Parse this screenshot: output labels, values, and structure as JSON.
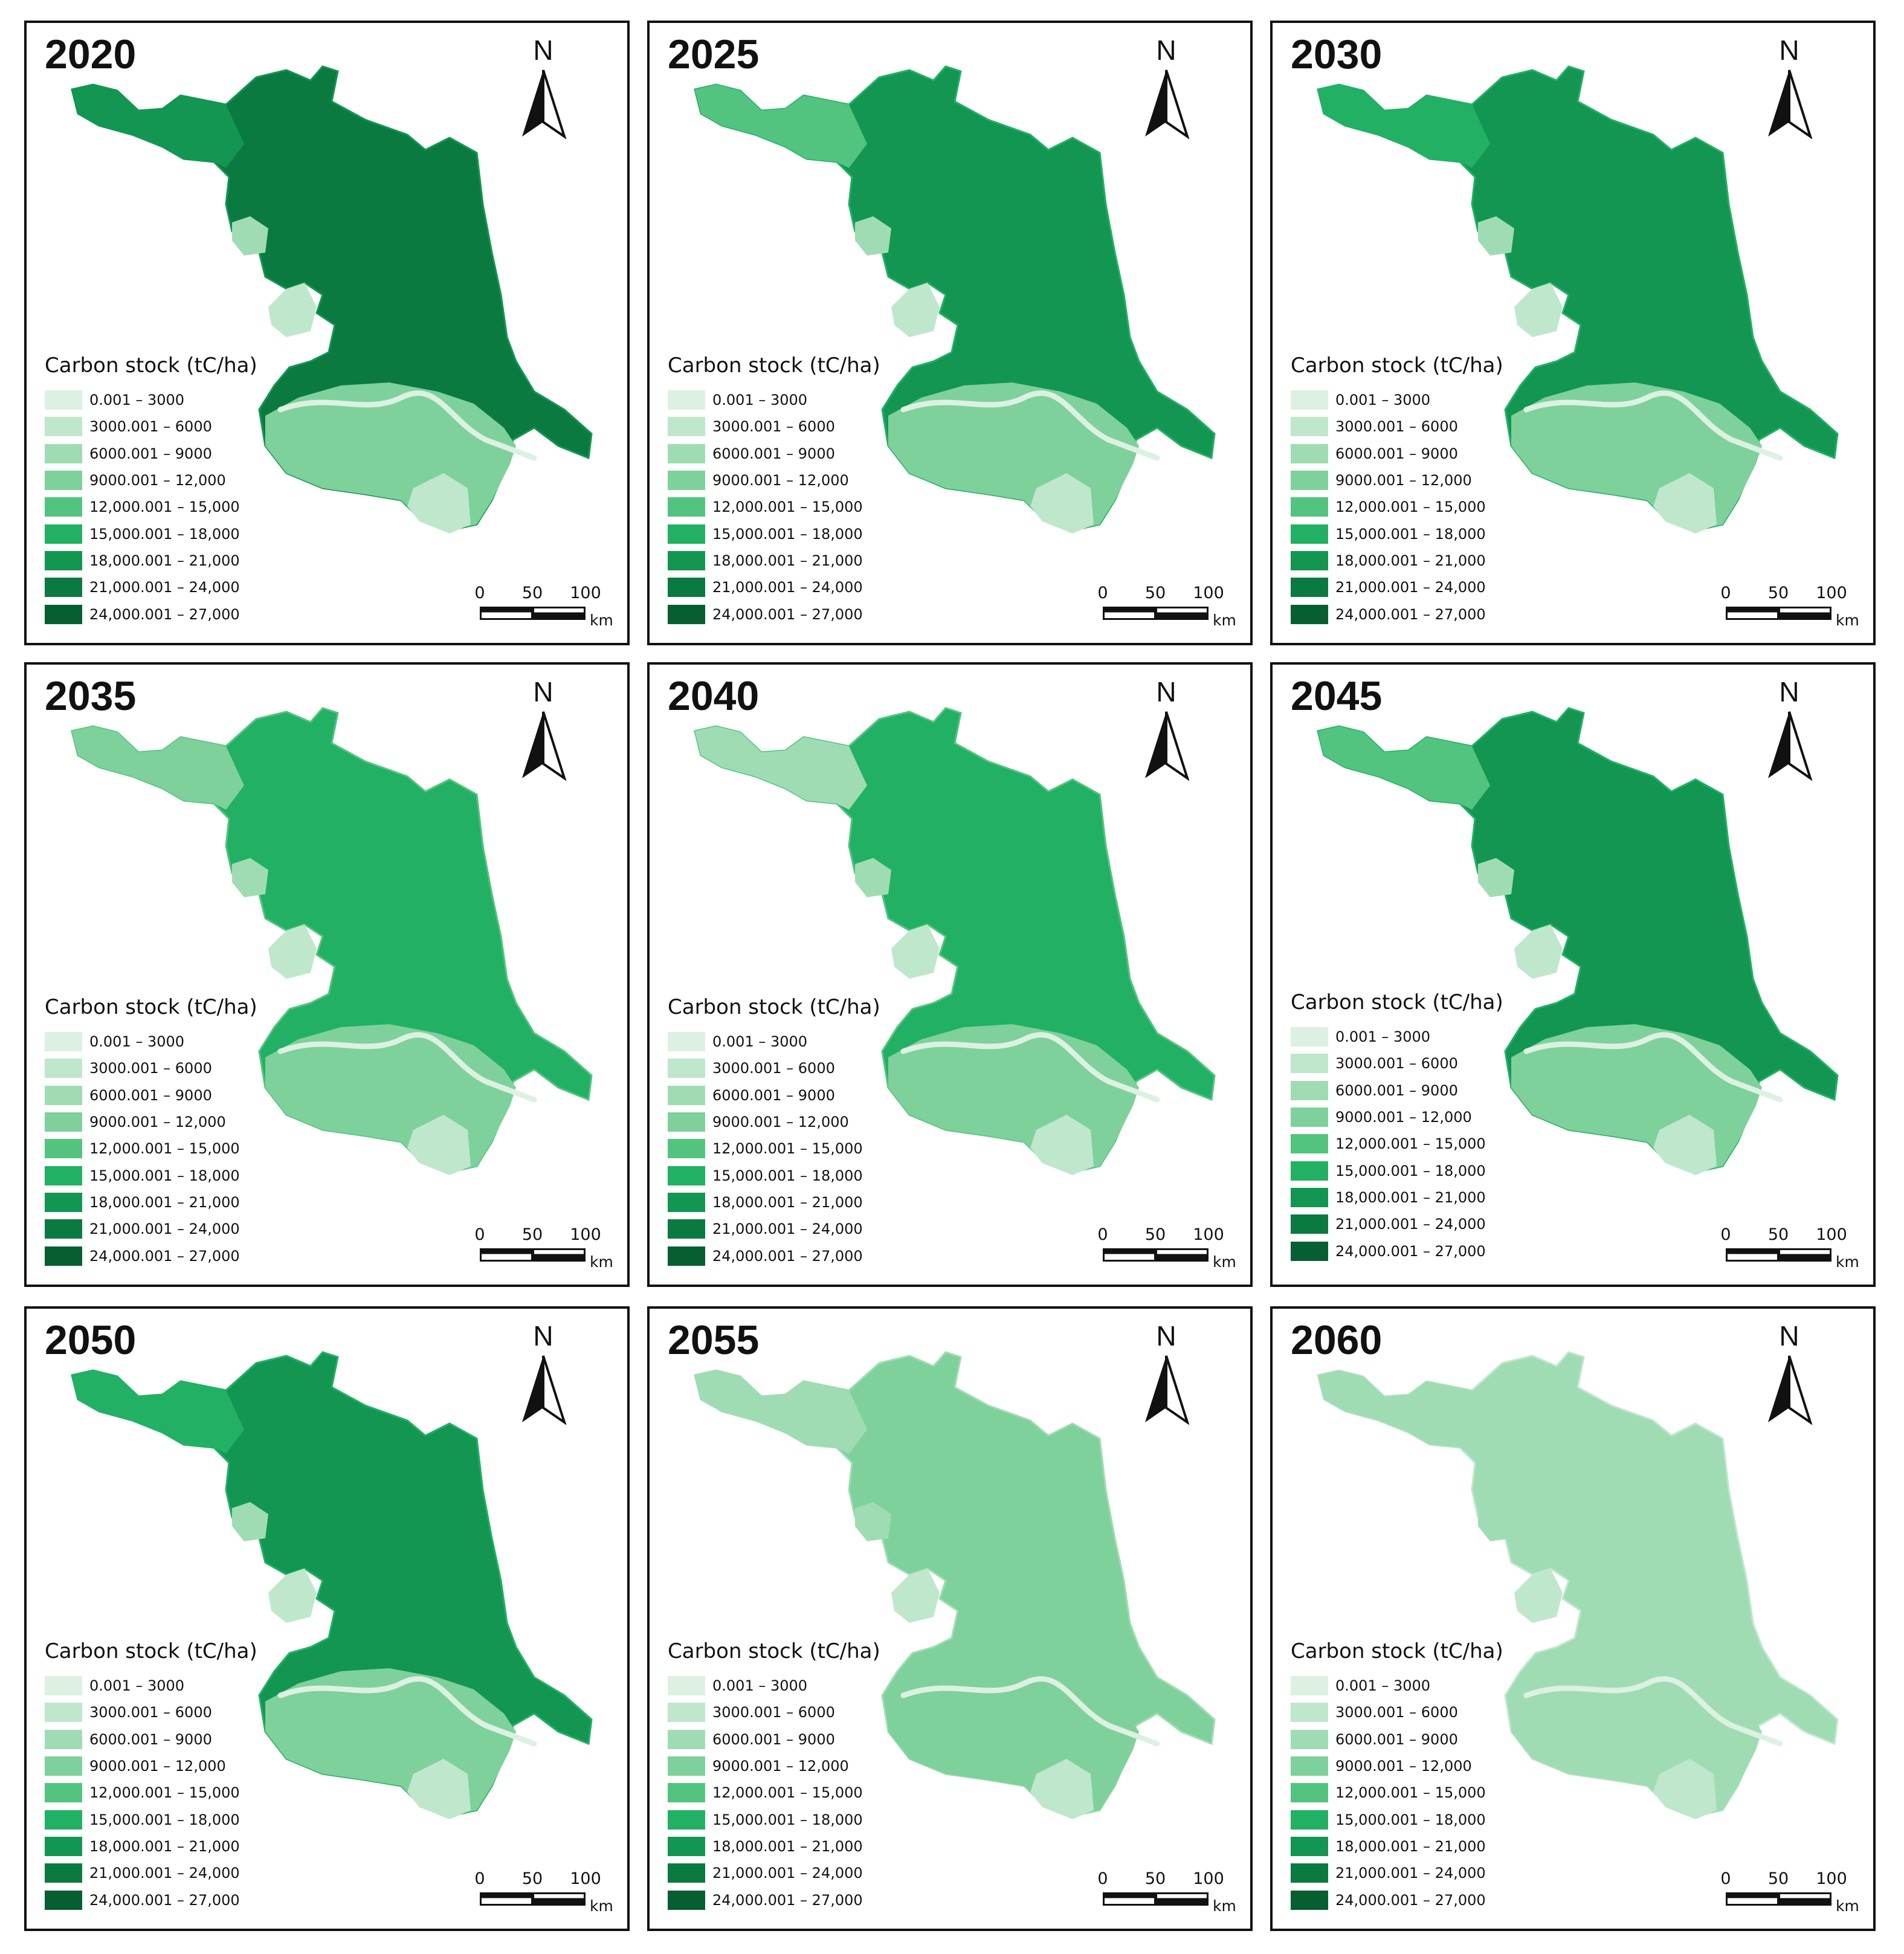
{
  "legend": {
    "title": "Carbon stock (tC/ha)",
    "classes": [
      {
        "label": "0.001 – 3000",
        "color": "#dcf1e2"
      },
      {
        "label": "3000.001 – 6000",
        "color": "#bfe7cc"
      },
      {
        "label": "6000.001 – 9000",
        "color": "#a0dcb3"
      },
      {
        "label": "9000.001 – 12,000",
        "color": "#7ed19a"
      },
      {
        "label": "12,000.001 – 15,000",
        "color": "#52c47f"
      },
      {
        "label": "15,000.001 – 18,000",
        "color": "#22b064"
      },
      {
        "label": "18,000.001 – 21,000",
        "color": "#129651"
      },
      {
        "label": "21,000.001 – 24,000",
        "color": "#0b7a40"
      },
      {
        "label": "24,000.001 – 27,000",
        "color": "#075e31"
      }
    ]
  },
  "north_label": "N",
  "scale": {
    "ticks": [
      "0",
      "50",
      "100"
    ],
    "unit": "km"
  },
  "panels": [
    {
      "year": "2020",
      "north_level": 7,
      "south_level": 3,
      "west_level": 6,
      "lake_level": 1
    },
    {
      "year": "2025",
      "north_level": 6,
      "south_level": 3,
      "west_level": 4,
      "lake_level": 1
    },
    {
      "year": "2030",
      "north_level": 6,
      "south_level": 3,
      "west_level": 5,
      "lake_level": 1
    },
    {
      "year": "2035",
      "north_level": 5,
      "south_level": 3,
      "west_level": 3,
      "lake_level": 1
    },
    {
      "year": "2040",
      "north_level": 5,
      "south_level": 3,
      "west_level": 2,
      "lake_level": 1
    },
    {
      "year": "2045",
      "north_level": 6,
      "south_level": 3,
      "west_level": 4,
      "lake_level": 1
    },
    {
      "year": "2050",
      "north_level": 6,
      "south_level": 3,
      "west_level": 5,
      "lake_level": 1
    },
    {
      "year": "2055",
      "north_level": 3,
      "south_level": 3,
      "west_level": 2,
      "lake_level": 1
    },
    {
      "year": "2060",
      "north_level": 2,
      "south_level": 2,
      "west_level": 2,
      "lake_level": 1
    }
  ]
}
